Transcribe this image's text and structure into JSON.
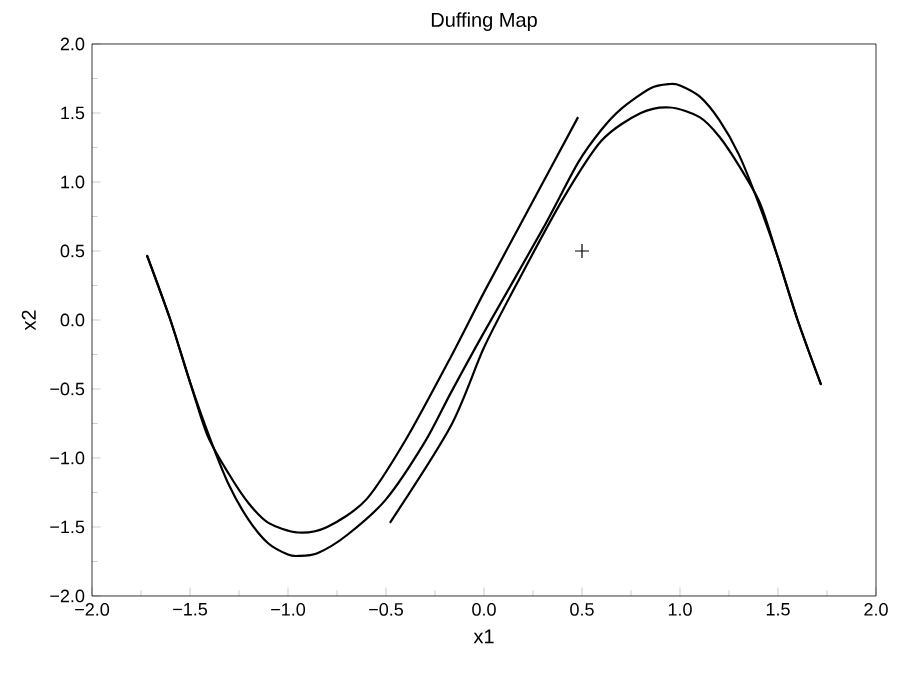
{
  "chart_data": {
    "type": "line",
    "title": "Duffing Map",
    "xlabel": "x1",
    "ylabel": "x2",
    "xlim": [
      -2,
      2
    ],
    "ylim": [
      -2,
      2
    ],
    "xticks": [
      {
        "value": -2,
        "label": "−2.0"
      },
      {
        "value": -1.5,
        "label": "−1.5"
      },
      {
        "value": -1,
        "label": "−1.0"
      },
      {
        "value": -0.5,
        "label": "−0.5"
      },
      {
        "value": 0,
        "label": "0.0"
      },
      {
        "value": 0.5,
        "label": "0.5"
      },
      {
        "value": 1,
        "label": "1.0"
      },
      {
        "value": 1.5,
        "label": "1.5"
      },
      {
        "value": 2,
        "label": "2.0"
      }
    ],
    "yticks": [
      {
        "value": -2,
        "label": "−2.0"
      },
      {
        "value": -1.5,
        "label": "−1.5"
      },
      {
        "value": -1,
        "label": "−1.0"
      },
      {
        "value": -0.5,
        "label": "−0.5"
      },
      {
        "value": 0,
        "label": "0.0"
      },
      {
        "value": 0.5,
        "label": "0.5"
      },
      {
        "value": 1,
        "label": "1.0"
      },
      {
        "value": 1.5,
        "label": "1.5"
      },
      {
        "value": 2,
        "label": "2.0"
      }
    ],
    "grid": false,
    "marker": "none",
    "line_style": "solid",
    "series": [
      {
        "color": "#000000",
        "x": [
          -1.72,
          -1.6,
          -1.5,
          -1.4,
          -1.3,
          -1.2,
          -1.1,
          -1.0,
          -0.95,
          -0.85,
          -0.7,
          -0.5,
          -0.3,
          -0.17,
          0,
          0.3,
          0.48,
          0.6,
          0.7,
          0.85,
          0.95,
          1.0,
          1.1,
          1.2,
          1.3,
          1.4,
          1.5,
          1.6,
          1.72
        ],
        "values": [
          0.47,
          0.0,
          -0.45,
          -0.85,
          -1.2,
          -1.45,
          -1.62,
          -1.7,
          -1.71,
          -1.69,
          -1.56,
          -1.3,
          -0.88,
          -0.53,
          -0.09,
          0.66,
          1.14,
          1.38,
          1.53,
          1.68,
          1.71,
          1.7,
          1.62,
          1.45,
          1.2,
          0.85,
          0.45,
          0.0,
          -0.47
        ]
      },
      {
        "color": "#000000",
        "x": [
          -1.72,
          -1.6,
          -1.5,
          -1.41,
          -1.3,
          -1.2,
          -1.1,
          -0.95,
          -0.8,
          -0.6,
          -0.4,
          -0.17,
          0,
          0.2,
          0.48
        ],
        "values": [
          0.47,
          0.0,
          -0.45,
          -0.84,
          -1.12,
          -1.33,
          -1.47,
          -1.54,
          -1.5,
          -1.3,
          -0.87,
          -0.27,
          0.2,
          0.73,
          1.47
        ]
      },
      {
        "color": "#000000",
        "x": [
          -0.48,
          -0.17,
          0,
          0.17,
          0.4,
          0.6,
          0.8,
          0.95,
          1.1,
          1.2,
          1.3,
          1.41,
          1.5,
          1.6,
          1.72
        ],
        "values": [
          -1.47,
          -0.77,
          -0.2,
          0.27,
          0.87,
          1.3,
          1.5,
          1.54,
          1.47,
          1.33,
          1.12,
          0.84,
          0.45,
          0.0,
          -0.47
        ]
      },
      {
        "color": "#000000",
        "type": "scatter",
        "marker": "cross",
        "x": [
          0.5
        ],
        "values": [
          0.5
        ]
      }
    ]
  }
}
